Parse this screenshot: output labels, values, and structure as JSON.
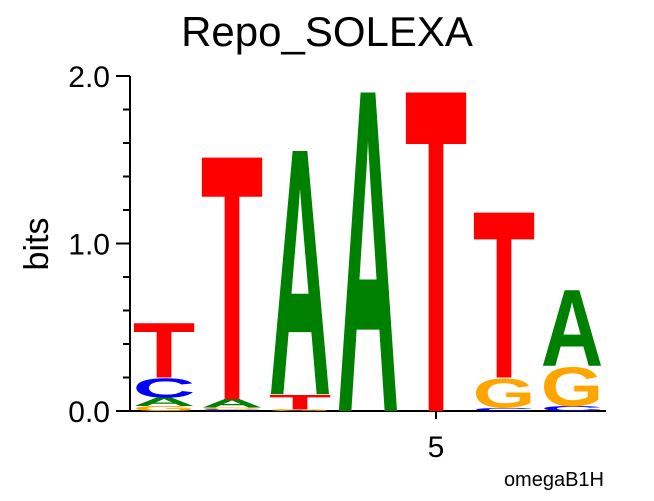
{
  "chart_data": {
    "type": "logo",
    "title": "Repo_SOLEXA",
    "y_label": "bits",
    "annotation": "omegaB1H",
    "x": [
      1,
      2,
      3,
      4,
      5,
      6,
      7
    ],
    "series": [
      {
        "name": "A",
        "color": "#008000",
        "values": [
          0.05,
          0.05,
          1.52,
          1.99,
          0,
          0,
          0.47
        ]
      },
      {
        "name": "C",
        "color": "#0000ff",
        "values": [
          0.12,
          0.01,
          0,
          0,
          0,
          0.02,
          0.03
        ]
      },
      {
        "name": "G",
        "color": "#ffa500",
        "values": [
          0.03,
          0.01,
          0.01,
          0,
          0,
          0.18,
          0.24
        ]
      },
      {
        "name": "T",
        "color": "#ff0000",
        "values": [
          0.34,
          1.51,
          0.09,
          0,
          1.99,
          1.03,
          0
        ]
      }
    ],
    "xlim": [
      0.5,
      7.5
    ],
    "xticks": [
      5
    ],
    "ylim": [
      0,
      2
    ],
    "yticks": [
      {
        "value": 0,
        "label": "0.0"
      },
      {
        "value": 1,
        "label": "1.0"
      },
      {
        "value": 2,
        "label": "2.0"
      }
    ],
    "yminor_ticks": [
      0.2,
      0.4,
      0.6,
      0.8,
      1.2,
      1.4,
      1.6,
      1.8
    ]
  }
}
